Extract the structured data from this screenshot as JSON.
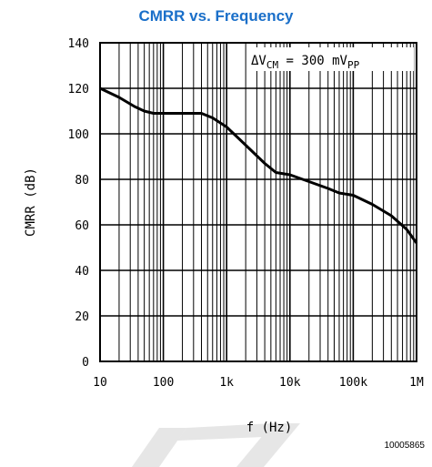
{
  "figure_number": "10005865",
  "colors": {
    "title": "#1a6fc9",
    "watermark": "#e6e6e6"
  },
  "chart_data": {
    "type": "line",
    "title": "CMRR vs. Frequency",
    "xlabel": "f (Hz)",
    "ylabel": "CMRR (dB)",
    "xscale": "log",
    "xlim": [
      10,
      1000000
    ],
    "ylim": [
      0,
      140
    ],
    "xticks": [
      10,
      100,
      1000,
      10000,
      100000,
      1000000
    ],
    "xticklabels": [
      "10",
      "100",
      "1k",
      "10k",
      "100k",
      "1M"
    ],
    "yticks": [
      0,
      20,
      40,
      60,
      80,
      100,
      120,
      140
    ],
    "yticklabels": [
      "0",
      "20",
      "40",
      "60",
      "80",
      "100",
      "120",
      "140"
    ],
    "grid": true,
    "annotation": {
      "prefix": "ΔV",
      "sub1": "CM",
      "middle": " = 300 mV",
      "sub2": "PP"
    },
    "series": [
      {
        "x": [
          10,
          20,
          35,
          50,
          70,
          100,
          200,
          400,
          600,
          1000,
          2000,
          4000,
          6000,
          10000,
          20000,
          40000,
          60000,
          100000,
          200000,
          400000,
          700000,
          1000000
        ],
        "y": [
          120,
          116,
          112,
          110,
          109,
          109,
          109,
          109,
          107,
          103,
          95,
          87,
          83,
          82,
          79,
          76,
          74,
          73,
          69,
          64,
          58,
          52
        ]
      }
    ]
  }
}
